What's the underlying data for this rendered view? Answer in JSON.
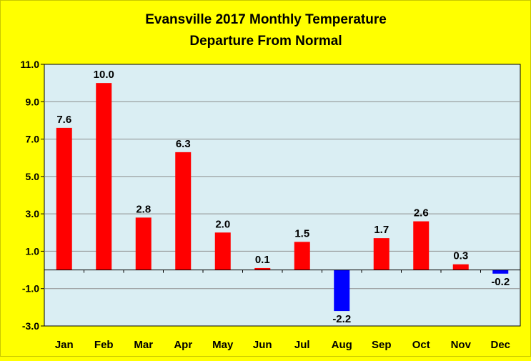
{
  "chart_data": {
    "type": "bar",
    "title_lines": [
      "Evansville 2017 Monthly Temperature",
      "Departure From Normal"
    ],
    "categories": [
      "Jan",
      "Feb",
      "Mar",
      "Apr",
      "May",
      "Jun",
      "Jul",
      "Aug",
      "Sep",
      "Oct",
      "Nov",
      "Dec"
    ],
    "values": [
      7.6,
      10.0,
      2.8,
      6.3,
      2.0,
      0.1,
      1.5,
      -2.2,
      1.7,
      2.6,
      0.3,
      -0.2
    ],
    "value_labels": [
      "7.6",
      "10.0",
      "2.8",
      "6.3",
      "2.0",
      "0.1",
      "1.5",
      "-2.2",
      "1.7",
      "2.6",
      "0.3",
      "-0.2"
    ],
    "y_ticks": [
      "11.0",
      "9.0",
      "7.0",
      "5.0",
      "3.0",
      "1.0",
      "-1.0",
      "-3.0"
    ],
    "y_tick_values": [
      11,
      9,
      7,
      5,
      3,
      1,
      -1,
      -3
    ],
    "ylim": [
      -3,
      11
    ],
    "grid": true,
    "colors": {
      "background": "#ffff00",
      "plot_background": "#daeef3",
      "positive": "#ff0000",
      "negative": "#0000ff",
      "grid": "#8c8c8c"
    }
  }
}
